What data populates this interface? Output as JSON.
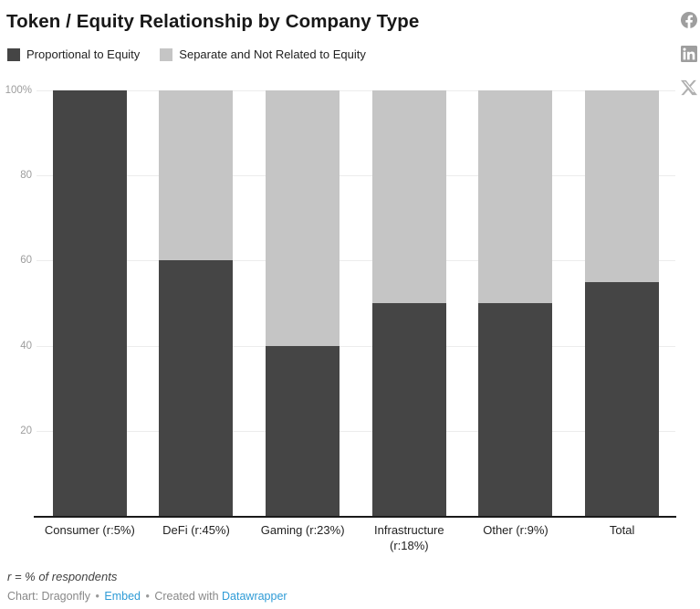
{
  "header": {
    "title": "Token / Equity Relationship by Company Type"
  },
  "share": {
    "icons": [
      "facebook",
      "linkedin",
      "x"
    ],
    "icon_color": "#9e9e9e"
  },
  "legend": {
    "items": [
      {
        "label": "Proportional to Equity",
        "color": "#454545"
      },
      {
        "label": "Separate and Not Related to Equity",
        "color": "#c5c5c5"
      }
    ]
  },
  "chart_data": {
    "type": "bar",
    "stacked": true,
    "unit": "%",
    "title": "Token / Equity Relationship by Company Type",
    "xlabel": "",
    "ylabel": "",
    "ylim": [
      0,
      100
    ],
    "grid": true,
    "legend_position": "top",
    "categories": [
      "Consumer (r:5%)",
      "DeFi (r:45%)",
      "Gaming (r:23%)",
      "Infrastructure (r:18%)",
      "Other (r:9%)",
      "Total"
    ],
    "series": [
      {
        "name": "Proportional to Equity",
        "color": "#454545",
        "values": [
          100,
          60,
          40,
          50,
          50,
          55
        ]
      },
      {
        "name": "Separate and Not Related to Equity",
        "color": "#c5c5c5",
        "values": [
          0,
          40,
          60,
          50,
          50,
          45
        ]
      }
    ],
    "yticks": [
      {
        "value": 100,
        "label": "100%"
      },
      {
        "value": 80,
        "label": "80"
      },
      {
        "value": 60,
        "label": "60"
      },
      {
        "value": 40,
        "label": "40"
      },
      {
        "value": 20,
        "label": "20"
      }
    ]
  },
  "footer": {
    "note": "r = % of respondents",
    "byline_prefix": "Chart: Dragonfly",
    "separator": "•",
    "embed_label": "Embed",
    "created_with": "Created with",
    "datawrapper_label": "Datawrapper"
  },
  "colors": {
    "link": "#2e9bd6",
    "grid": "#ececec",
    "baseline": "#1a1a1a",
    "axis_text": "#9d9d9d"
  }
}
